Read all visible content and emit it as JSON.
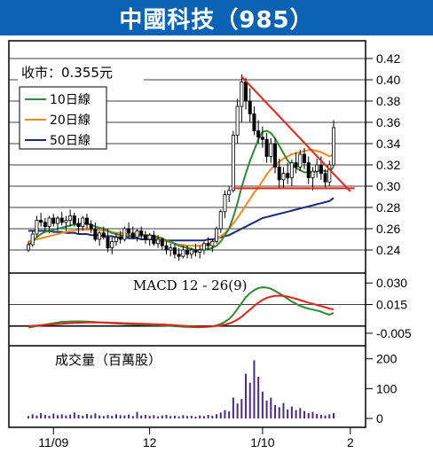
{
  "title": "中國科技（985）",
  "close_label": "收市：0.355元",
  "legend": [
    {
      "name": "10日線",
      "color": "#2e8b2e"
    },
    {
      "name": "20日線",
      "color": "#f28a1e"
    },
    {
      "name": "50日線",
      "color": "#1c2a7a"
    }
  ],
  "macd_label": "MACD 12 - 26(9)",
  "volume_label": "成交量（百萬股）",
  "chart_data": [
    {
      "type": "line",
      "panel": "price",
      "y_ticks": [
        "0.42",
        "0.40",
        "0.38",
        "0.36",
        "0.34",
        "0.32",
        "0.30",
        "0.28",
        "0.26",
        "0.24"
      ],
      "ylim": [
        0.225,
        0.425
      ],
      "x_ticks": [
        "11/09",
        "12",
        "1/10",
        "2"
      ],
      "x_tick_index": [
        6,
        29,
        56,
        77
      ],
      "ohlc": [
        [
          0.24,
          0.248,
          0.238,
          0.245
        ],
        [
          0.245,
          0.258,
          0.243,
          0.255
        ],
        [
          0.255,
          0.272,
          0.252,
          0.268
        ],
        [
          0.268,
          0.275,
          0.262,
          0.266
        ],
        [
          0.266,
          0.27,
          0.258,
          0.262
        ],
        [
          0.262,
          0.272,
          0.256,
          0.27
        ],
        [
          0.27,
          0.274,
          0.262,
          0.265
        ],
        [
          0.265,
          0.272,
          0.258,
          0.27
        ],
        [
          0.27,
          0.276,
          0.263,
          0.266
        ],
        [
          0.266,
          0.272,
          0.258,
          0.268
        ],
        [
          0.268,
          0.278,
          0.262,
          0.272
        ],
        [
          0.272,
          0.275,
          0.262,
          0.265
        ],
        [
          0.265,
          0.27,
          0.255,
          0.262
        ],
        [
          0.262,
          0.272,
          0.258,
          0.27
        ],
        [
          0.27,
          0.274,
          0.26,
          0.264
        ],
        [
          0.264,
          0.268,
          0.256,
          0.26
        ],
        [
          0.26,
          0.266,
          0.248,
          0.25
        ],
        [
          0.25,
          0.258,
          0.244,
          0.256
        ],
        [
          0.256,
          0.262,
          0.25,
          0.252
        ],
        [
          0.252,
          0.26,
          0.238,
          0.242
        ],
        [
          0.242,
          0.252,
          0.236,
          0.248
        ],
        [
          0.248,
          0.256,
          0.244,
          0.252
        ],
        [
          0.252,
          0.258,
          0.246,
          0.25
        ],
        [
          0.25,
          0.262,
          0.248,
          0.26
        ],
        [
          0.26,
          0.266,
          0.252,
          0.256
        ],
        [
          0.256,
          0.262,
          0.25,
          0.252
        ],
        [
          0.252,
          0.26,
          0.248,
          0.258
        ],
        [
          0.258,
          0.262,
          0.25,
          0.254
        ],
        [
          0.254,
          0.258,
          0.246,
          0.25
        ],
        [
          0.25,
          0.256,
          0.244,
          0.254
        ],
        [
          0.254,
          0.258,
          0.244,
          0.246
        ],
        [
          0.246,
          0.254,
          0.242,
          0.25
        ],
        [
          0.25,
          0.252,
          0.24,
          0.244
        ],
        [
          0.244,
          0.248,
          0.236,
          0.24
        ],
        [
          0.24,
          0.246,
          0.234,
          0.242
        ],
        [
          0.242,
          0.246,
          0.232,
          0.236
        ],
        [
          0.236,
          0.242,
          0.23,
          0.234
        ],
        [
          0.234,
          0.244,
          0.232,
          0.24
        ],
        [
          0.24,
          0.244,
          0.232,
          0.236
        ],
        [
          0.236,
          0.242,
          0.232,
          0.24
        ],
        [
          0.24,
          0.246,
          0.234,
          0.238
        ],
        [
          0.238,
          0.244,
          0.232,
          0.24
        ],
        [
          0.24,
          0.248,
          0.236,
          0.246
        ],
        [
          0.246,
          0.252,
          0.24,
          0.244
        ],
        [
          0.244,
          0.25,
          0.238,
          0.248
        ],
        [
          0.248,
          0.262,
          0.246,
          0.26
        ],
        [
          0.26,
          0.278,
          0.256,
          0.276
        ],
        [
          0.276,
          0.296,
          0.27,
          0.292
        ],
        [
          0.292,
          0.3,
          0.285,
          0.296
        ],
        [
          0.296,
          0.352,
          0.294,
          0.348
        ],
        [
          0.348,
          0.382,
          0.34,
          0.375
        ],
        [
          0.375,
          0.405,
          0.36,
          0.398
        ],
        [
          0.398,
          0.402,
          0.372,
          0.38
        ],
        [
          0.38,
          0.392,
          0.36,
          0.368
        ],
        [
          0.368,
          0.375,
          0.348,
          0.352
        ],
        [
          0.352,
          0.362,
          0.34,
          0.346
        ],
        [
          0.346,
          0.356,
          0.336,
          0.344
        ],
        [
          0.344,
          0.35,
          0.322,
          0.328
        ],
        [
          0.328,
          0.345,
          0.322,
          0.34
        ],
        [
          0.34,
          0.345,
          0.312,
          0.318
        ],
        [
          0.318,
          0.326,
          0.298,
          0.306
        ],
        [
          0.306,
          0.318,
          0.298,
          0.312
        ],
        [
          0.312,
          0.322,
          0.302,
          0.308
        ],
        [
          0.308,
          0.325,
          0.3,
          0.322
        ],
        [
          0.322,
          0.332,
          0.312,
          0.318
        ],
        [
          0.318,
          0.334,
          0.314,
          0.33
        ],
        [
          0.33,
          0.336,
          0.316,
          0.322
        ],
        [
          0.322,
          0.328,
          0.302,
          0.308
        ],
        [
          0.308,
          0.318,
          0.296,
          0.314
        ],
        [
          0.314,
          0.326,
          0.308,
          0.32
        ],
        [
          0.32,
          0.328,
          0.306,
          0.312
        ],
        [
          0.312,
          0.316,
          0.298,
          0.304
        ],
        [
          0.304,
          0.324,
          0.3,
          0.32
        ],
        [
          0.32,
          0.362,
          0.318,
          0.355
        ]
      ],
      "ma10": [
        0.245,
        0.248,
        0.252,
        0.255,
        0.257,
        0.258,
        0.259,
        0.26,
        0.261,
        0.262,
        0.263,
        0.264,
        0.264,
        0.265,
        0.265,
        0.264,
        0.262,
        0.261,
        0.26,
        0.258,
        0.256,
        0.255,
        0.254,
        0.253,
        0.253,
        0.253,
        0.253,
        0.254,
        0.254,
        0.254,
        0.253,
        0.252,
        0.251,
        0.249,
        0.248,
        0.246,
        0.244,
        0.243,
        0.242,
        0.241,
        0.24,
        0.24,
        0.241,
        0.241,
        0.242,
        0.244,
        0.248,
        0.254,
        0.26,
        0.271,
        0.284,
        0.299,
        0.312,
        0.324,
        0.334,
        0.344,
        0.351,
        0.352,
        0.35,
        0.345,
        0.338,
        0.331,
        0.324,
        0.32,
        0.317,
        0.315,
        0.313,
        0.313,
        0.313,
        0.314,
        0.315,
        0.314,
        0.314,
        0.318
      ],
      "ma20": [
        0.248,
        0.249,
        0.25,
        0.251,
        0.252,
        0.253,
        0.254,
        0.255,
        0.256,
        0.257,
        0.258,
        0.258,
        0.259,
        0.259,
        0.259,
        0.259,
        0.259,
        0.259,
        0.258,
        0.258,
        0.257,
        0.256,
        0.256,
        0.255,
        0.255,
        0.254,
        0.254,
        0.253,
        0.253,
        0.252,
        0.251,
        0.25,
        0.249,
        0.248,
        0.247,
        0.246,
        0.245,
        0.245,
        0.244,
        0.244,
        0.244,
        0.244,
        0.245,
        0.246,
        0.248,
        0.25,
        0.253,
        0.256,
        0.26,
        0.265,
        0.27,
        0.276,
        0.282,
        0.288,
        0.294,
        0.299,
        0.305,
        0.311,
        0.316,
        0.32,
        0.323,
        0.326,
        0.328,
        0.33,
        0.331,
        0.332,
        0.333,
        0.334,
        0.334,
        0.333,
        0.332,
        0.33,
        0.328,
        0.33
      ],
      "ma50": [
        0.258,
        0.258,
        0.258,
        0.258,
        0.258,
        0.258,
        0.257,
        0.257,
        0.257,
        0.256,
        0.256,
        0.256,
        0.255,
        0.255,
        0.255,
        0.254,
        0.254,
        0.254,
        0.253,
        0.253,
        0.253,
        0.252,
        0.252,
        0.252,
        0.251,
        0.251,
        0.251,
        0.25,
        0.25,
        0.25,
        0.25,
        0.249,
        0.249,
        0.249,
        0.249,
        0.249,
        0.249,
        0.249,
        0.249,
        0.249,
        0.249,
        0.249,
        0.249,
        0.25,
        0.25,
        0.251,
        0.252,
        0.253,
        0.254,
        0.256,
        0.258,
        0.26,
        0.262,
        0.264,
        0.266,
        0.268,
        0.27,
        0.271,
        0.272,
        0.273,
        0.274,
        0.275,
        0.276,
        0.277,
        0.278,
        0.279,
        0.28,
        0.281,
        0.282,
        0.283,
        0.284,
        0.285,
        0.286,
        0.289
      ],
      "trendlines": [
        {
          "from": [
            51,
            0.403
          ],
          "to": [
            77,
            0.295
          ],
          "color": "#e8201a"
        },
        {
          "from": [
            49,
            0.298
          ],
          "to": [
            78,
            0.298
          ],
          "color": "#e8201a"
        }
      ]
    },
    {
      "type": "line",
      "panel": "macd",
      "y_ticks": [
        "0.030",
        "0.015",
        "-0.005"
      ],
      "ylim": [
        -0.01,
        0.032
      ],
      "macd": [
        -0.001,
        -0.0005,
        0.0,
        0.0005,
        0.001,
        0.0015,
        0.002,
        0.0025,
        0.003,
        0.003,
        0.0032,
        0.0033,
        0.0033,
        0.0032,
        0.0031,
        0.003,
        0.0028,
        0.0026,
        0.0024,
        0.0022,
        0.002,
        0.0018,
        0.0016,
        0.0014,
        0.0013,
        0.0012,
        0.0011,
        0.001,
        0.0009,
        0.0008,
        0.0007,
        0.0006,
        0.0005,
        0.0003,
        0.0001,
        -0.0001,
        -0.0003,
        -0.0005,
        -0.0006,
        -0.0007,
        -0.0008,
        -0.0008,
        -0.0007,
        -0.0005,
        -0.0002,
        0.0005,
        0.0015,
        0.003,
        0.005,
        0.008,
        0.012,
        0.016,
        0.02,
        0.023,
        0.025,
        0.0265,
        0.027,
        0.0268,
        0.026,
        0.0245,
        0.0228,
        0.021,
        0.019,
        0.017,
        0.0155,
        0.014,
        0.013,
        0.0122,
        0.0115,
        0.0108,
        0.01,
        0.0088,
        0.008,
        0.0092
      ],
      "signal": [
        0.0,
        0.0002,
        0.0004,
        0.0006,
        0.0008,
        0.001,
        0.0012,
        0.0014,
        0.0016,
        0.0018,
        0.002,
        0.0022,
        0.0023,
        0.0024,
        0.0025,
        0.0025,
        0.0025,
        0.0025,
        0.0025,
        0.0024,
        0.0023,
        0.0022,
        0.0021,
        0.002,
        0.0019,
        0.0018,
        0.0017,
        0.0016,
        0.0015,
        0.0014,
        0.0013,
        0.0012,
        0.0011,
        0.001,
        0.0008,
        0.0006,
        0.0004,
        0.0002,
        0.0,
        -0.0002,
        -0.0003,
        -0.0004,
        -0.0004,
        -0.0004,
        -0.0003,
        0.0,
        0.0005,
        0.001,
        0.0018,
        0.003,
        0.0045,
        0.0065,
        0.009,
        0.0115,
        0.014,
        0.0163,
        0.0182,
        0.0196,
        0.0205,
        0.021,
        0.0212,
        0.021,
        0.0205,
        0.0198,
        0.019,
        0.0181,
        0.0172,
        0.0163,
        0.0155,
        0.0147,
        0.0139,
        0.0131,
        0.0122,
        0.0116
      ]
    },
    {
      "type": "bar",
      "panel": "volume",
      "y_ticks": [
        "200",
        "100",
        "0"
      ],
      "ylim": [
        0,
        220
      ],
      "values": [
        8,
        14,
        10,
        18,
        12,
        9,
        16,
        11,
        14,
        10,
        13,
        20,
        12,
        9,
        15,
        11,
        17,
        10,
        8,
        12,
        9,
        14,
        11,
        10,
        13,
        8,
        22,
        10,
        12,
        9,
        11,
        7,
        10,
        12,
        8,
        9,
        7,
        11,
        8,
        9,
        6,
        10,
        8,
        12,
        9,
        14,
        20,
        28,
        24,
        70,
        50,
        65,
        150,
        120,
        195,
        140,
        90,
        60,
        70,
        45,
        38,
        52,
        30,
        40,
        28,
        35,
        25,
        18,
        22,
        15,
        12,
        10,
        14,
        18
      ]
    }
  ]
}
